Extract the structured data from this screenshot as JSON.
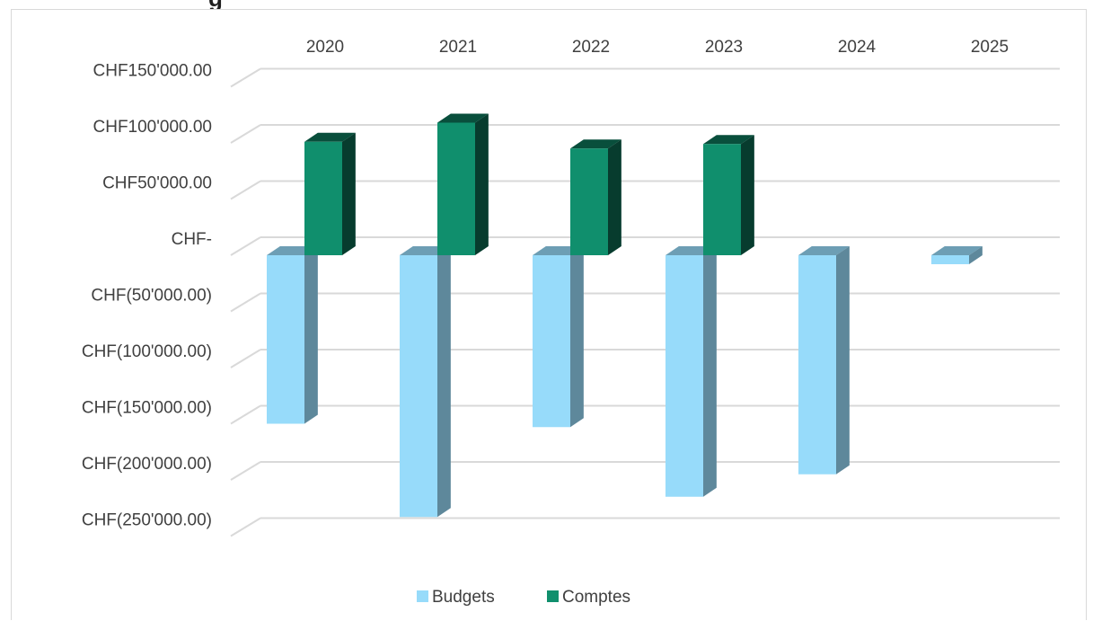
{
  "chart_data": {
    "type": "bar",
    "title": "",
    "categories": [
      "2020",
      "2021",
      "2022",
      "2023",
      "2024",
      "2025"
    ],
    "series": [
      {
        "name": "Budgets",
        "values": [
          -150000,
          -233000,
          -153000,
          -215000,
          -195000,
          -8000
        ],
        "color": "#97dbfa"
      },
      {
        "name": "Comptes",
        "values": [
          101000,
          118000,
          95000,
          99000,
          null,
          null
        ],
        "color": "#108f6d"
      }
    ],
    "ylim": [
      -250000,
      150000
    ],
    "y_tick_labels": [
      "CHF150'000.00",
      "CHF100'000.00",
      "CHF50'000.00",
      "CHF-",
      "CHF(50'000.00)",
      "CHF(100'000.00)",
      "CHF(150'000.00)",
      "CHF(200'000.00)",
      "CHF(250'000.00)"
    ],
    "xlabel": "",
    "ylabel": "",
    "grid": true,
    "legend_position": "bottom",
    "style": "3d-column"
  }
}
